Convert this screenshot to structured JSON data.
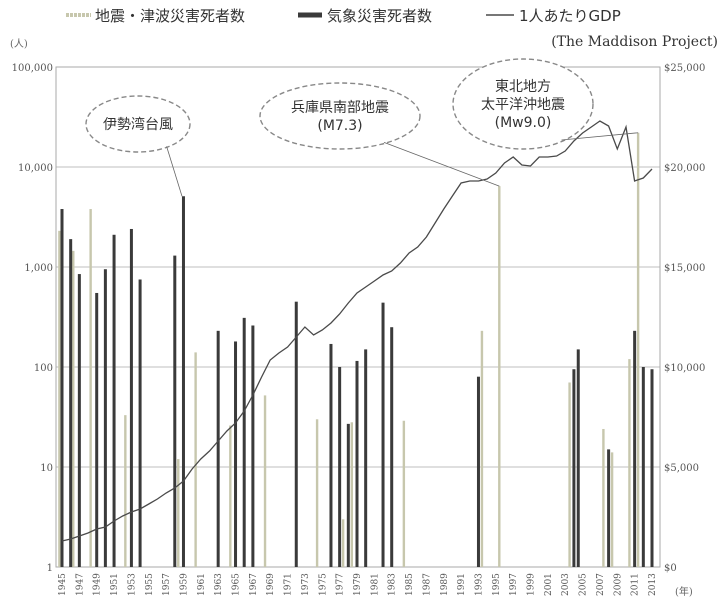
{
  "legend": {
    "quake_label": "地震・津波災害死者数",
    "weather_label": "気象災害死者数",
    "gdp_label": "1人あたりGDP",
    "gdp_source": "(The Maddison Project)"
  },
  "colors": {
    "weather": "#3a3a3a",
    "quake": "#c7c7ad",
    "gdp_line": "#4a4a4a",
    "grid": "#aaaaaa",
    "annotation": "#888888"
  },
  "annotations": [
    {
      "lines": [
        "伊勢湾台風"
      ],
      "year": 1959
    },
    {
      "lines": [
        "兵庫県南部地震",
        "(M7.3)"
      ],
      "year": 1995
    },
    {
      "lines": [
        "東北地方",
        "太平洋沖地震",
        "(Mw9.0)"
      ],
      "year": 2011
    }
  ],
  "chart_data": {
    "type": "bar",
    "title": "",
    "ylabel": "(人)",
    "xlabel": "(年)",
    "yscale": "log",
    "ylim": [
      1,
      100000
    ],
    "y_ticks": [
      "1",
      "10",
      "100",
      "1,000",
      "10,000",
      "100,000"
    ],
    "y2lim": [
      0,
      25000
    ],
    "y2_ticks": [
      "$0",
      "$5,000",
      "$10,000",
      "$15,000",
      "$20,000",
      "$25,000"
    ],
    "x_ticks": [
      "1945",
      "1947",
      "1949",
      "1951",
      "1953",
      "1955",
      "1957",
      "1959",
      "1961",
      "1963",
      "1965",
      "1967",
      "1969",
      "1971",
      "1973",
      "1975",
      "1977",
      "1979",
      "1981",
      "1983",
      "1985",
      "1987",
      "1989",
      "1991",
      "1993",
      "1995",
      "1997",
      "1999",
      "2001",
      "2003",
      "2005",
      "2007",
      "2009",
      "2011",
      "2013"
    ],
    "series": [
      {
        "name": "気象災害死者数",
        "type": "bar",
        "points": [
          [
            1945,
            3800
          ],
          [
            1946,
            1900
          ],
          [
            1947,
            850
          ],
          [
            1949,
            550
          ],
          [
            1950,
            950
          ],
          [
            1951,
            2100
          ],
          [
            1953,
            2400
          ],
          [
            1954,
            750
          ],
          [
            1958,
            1300
          ],
          [
            1959,
            5100
          ],
          [
            1963,
            230
          ],
          [
            1965,
            180
          ],
          [
            1966,
            310
          ],
          [
            1967,
            260
          ],
          [
            1972,
            450
          ],
          [
            1976,
            170
          ],
          [
            1977,
            100
          ],
          [
            1978,
            27
          ],
          [
            1979,
            115
          ],
          [
            1980,
            150
          ],
          [
            1982,
            440
          ],
          [
            1983,
            250
          ],
          [
            1993,
            80
          ],
          [
            2004,
            95
          ],
          [
            2004.5,
            150
          ],
          [
            2008,
            15
          ],
          [
            2011,
            230
          ],
          [
            2012,
            100
          ],
          [
            2013,
            95
          ]
        ]
      },
      {
        "name": "地震・津波災害死者数",
        "type": "bar",
        "points": [
          [
            1944.7,
            2300
          ],
          [
            1946.3,
            1450
          ],
          [
            1948.3,
            3800
          ],
          [
            1952.3,
            33
          ],
          [
            1958.4,
            12
          ],
          [
            1960.4,
            140
          ],
          [
            1964.4,
            26
          ],
          [
            1968.4,
            52
          ],
          [
            1974.4,
            30
          ],
          [
            1977.4,
            3
          ],
          [
            1978.4,
            28
          ],
          [
            1984.4,
            29
          ],
          [
            1993.4,
            230
          ],
          [
            1995.4,
            6437
          ],
          [
            2003.5,
            70
          ],
          [
            2007.4,
            24
          ],
          [
            2008.4,
            14
          ],
          [
            2010.4,
            120
          ],
          [
            2011.4,
            22000
          ]
        ]
      },
      {
        "name": "1人あたりGDP",
        "type": "line",
        "axis": "right",
        "points": [
          [
            1945,
            1300
          ],
          [
            1946,
            1400
          ],
          [
            1947,
            1550
          ],
          [
            1948,
            1700
          ],
          [
            1949,
            1900
          ],
          [
            1950,
            2000
          ],
          [
            1951,
            2300
          ],
          [
            1952,
            2550
          ],
          [
            1953,
            2750
          ],
          [
            1954,
            2900
          ],
          [
            1955,
            3150
          ],
          [
            1956,
            3400
          ],
          [
            1957,
            3700
          ],
          [
            1958,
            3950
          ],
          [
            1959,
            4300
          ],
          [
            1960,
            4900
          ],
          [
            1961,
            5400
          ],
          [
            1962,
            5800
          ],
          [
            1963,
            6300
          ],
          [
            1964,
            6800
          ],
          [
            1965,
            7200
          ],
          [
            1966,
            7800
          ],
          [
            1967,
            8600
          ],
          [
            1968,
            9500
          ],
          [
            1969,
            10350
          ],
          [
            1970,
            10700
          ],
          [
            1971,
            11000
          ],
          [
            1972,
            11500
          ],
          [
            1973,
            12000
          ],
          [
            1974,
            11600
          ],
          [
            1975,
            11850
          ],
          [
            1976,
            12200
          ],
          [
            1977,
            12650
          ],
          [
            1978,
            13200
          ],
          [
            1979,
            13700
          ],
          [
            1980,
            14000
          ],
          [
            1981,
            14300
          ],
          [
            1982,
            14600
          ],
          [
            1983,
            14800
          ],
          [
            1984,
            15200
          ],
          [
            1985,
            15700
          ],
          [
            1986,
            16000
          ],
          [
            1987,
            16500
          ],
          [
            1988,
            17200
          ],
          [
            1989,
            17900
          ],
          [
            1990,
            18550
          ],
          [
            1991,
            19200
          ],
          [
            1992,
            19300
          ],
          [
            1993,
            19300
          ],
          [
            1994,
            19400
          ],
          [
            1995,
            19700
          ],
          [
            1996,
            20200
          ],
          [
            1997,
            20500
          ],
          [
            1998,
            20100
          ],
          [
            1999,
            20050
          ],
          [
            2000,
            20500
          ],
          [
            2001,
            20500
          ],
          [
            2002,
            20550
          ],
          [
            2003,
            20800
          ],
          [
            2004,
            21300
          ],
          [
            2005,
            21700
          ],
          [
            2006,
            22000
          ],
          [
            2007,
            22300
          ],
          [
            2008,
            22050
          ],
          [
            2009,
            20900
          ],
          [
            2010,
            22000
          ],
          [
            2011,
            19300
          ],
          [
            2012,
            19450
          ],
          [
            2013,
            19900
          ]
        ]
      }
    ]
  }
}
